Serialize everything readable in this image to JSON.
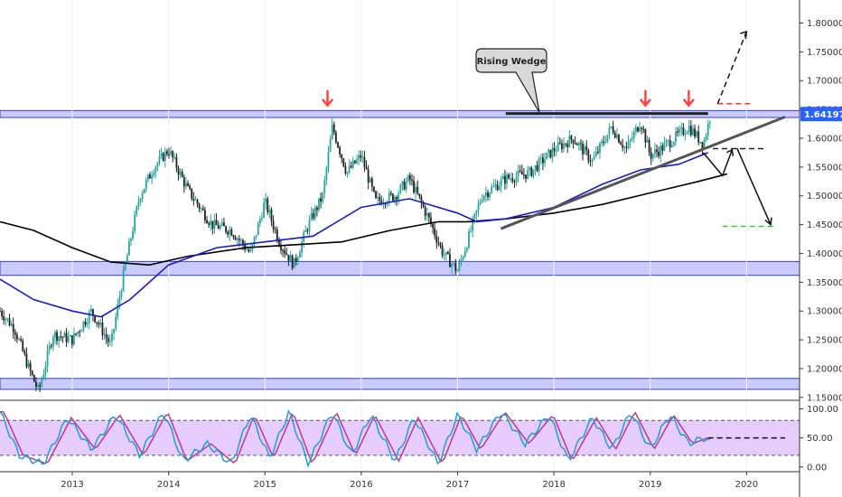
{
  "chart_data": [
    {
      "type": "candlestick",
      "annotation": "Rising Wedge",
      "last_price": "1.64197",
      "x_ticks": [
        "2013",
        "2014",
        "2015",
        "2016",
        "2017",
        "2018",
        "2019",
        "2020"
      ],
      "y_ticks": [
        "1.80000",
        "1.75000",
        "1.70000",
        "1.65000",
        "1.60000",
        "1.55000",
        "1.50000",
        "1.45000",
        "1.40000",
        "1.35000",
        "1.30000",
        "1.25000",
        "1.20000",
        "1.15000"
      ],
      "ylim": [
        1.145,
        1.84
      ],
      "xlim": [
        2012.25,
        2020.55
      ],
      "colors": {
        "up": "#26a69a",
        "down": "#222222",
        "zone": "#b3b3ff",
        "zone_border": "#3344cc",
        "ma_fast": "#1a1acc",
        "ma_slow": "#000000",
        "badge": "#2962ff",
        "target_up": "#ff3333",
        "target_down": "#33cc33",
        "arrow": "#ff4444",
        "oscillator_fill": "#e6ccff"
      },
      "zones": [
        [
          1.636,
          1.648
        ],
        [
          1.362,
          1.386
        ],
        [
          1.164,
          1.183
        ]
      ],
      "resistance_line": {
        "x": [
          2017.5,
          2019.6
        ],
        "y": [
          1.643,
          1.643
        ]
      },
      "support_trendline": {
        "x": [
          2017.45,
          2020.4
        ],
        "y": [
          1.443,
          1.637
        ]
      },
      "up_target": {
        "x": [
          2019.7,
          2020.05
        ],
        "y": [
          1.66,
          1.66
        ]
      },
      "down_target": {
        "x": [
          2019.75,
          2020.3
        ],
        "y": [
          1.447,
          1.447
        ]
      },
      "mid_line": {
        "x": [
          2019.65,
          2020.2
        ],
        "y": [
          1.582,
          1.582
        ]
      },
      "arrows_at": [
        [
          2015.65,
          1.66
        ],
        [
          2018.95,
          1.66
        ],
        [
          2019.4,
          1.66
        ]
      ],
      "projection_up": {
        "x": [
          2019.7,
          2020.0
        ],
        "y": [
          1.66,
          1.785
        ]
      },
      "projection_down": {
        "x": [
          2019.9,
          2020.25
        ],
        "y": [
          1.583,
          1.45
        ]
      },
      "projection_bounce": {
        "x": [
          2019.55,
          2019.75,
          2019.85
        ],
        "y": [
          1.575,
          1.535,
          1.58
        ]
      },
      "ma_fast": {
        "x": [
          2012.25,
          2012.6,
          2013.0,
          2013.3,
          2013.6,
          2014.0,
          2014.5,
          2015.0,
          2015.5,
          2016.0,
          2016.5,
          2017.0,
          2017.2,
          2017.5,
          2018.0,
          2018.5,
          2018.9,
          2019.3,
          2019.6
        ],
        "y": [
          1.355,
          1.32,
          1.3,
          1.29,
          1.32,
          1.38,
          1.41,
          1.42,
          1.43,
          1.48,
          1.495,
          1.47,
          1.455,
          1.46,
          1.48,
          1.52,
          1.545,
          1.555,
          1.575
        ]
      },
      "ma_slow": {
        "x": [
          2012.25,
          2012.6,
          2013.0,
          2013.4,
          2013.8,
          2014.2,
          2014.8,
          2015.3,
          2015.8,
          2016.3,
          2016.8,
          2017.1,
          2017.5,
          2018.0,
          2018.5,
          2019.0,
          2019.5,
          2019.8
        ],
        "y": [
          1.455,
          1.44,
          1.41,
          1.385,
          1.38,
          1.395,
          1.41,
          1.415,
          1.42,
          1.44,
          1.455,
          1.455,
          1.46,
          1.47,
          1.485,
          1.505,
          1.525,
          1.538
        ]
      },
      "price_path": {
        "x": [
          2012.25,
          2012.4,
          2012.55,
          2012.65,
          2012.8,
          2013.0,
          2013.2,
          2013.4,
          2013.55,
          2013.7,
          2013.85,
          2014.0,
          2014.2,
          2014.45,
          2014.65,
          2014.85,
          2015.0,
          2015.15,
          2015.3,
          2015.45,
          2015.6,
          2015.7,
          2015.85,
          2016.0,
          2016.15,
          2016.35,
          2016.5,
          2016.7,
          2016.85,
          2017.0,
          2017.1,
          2017.25,
          2017.5,
          2017.75,
          2018.0,
          2018.2,
          2018.4,
          2018.6,
          2018.75,
          2018.9,
          2019.0,
          2019.1,
          2019.25,
          2019.4,
          2019.55,
          2019.62
        ],
        "y": [
          1.3,
          1.27,
          1.2,
          1.16,
          1.26,
          1.25,
          1.3,
          1.24,
          1.38,
          1.5,
          1.55,
          1.58,
          1.51,
          1.45,
          1.44,
          1.4,
          1.49,
          1.42,
          1.38,
          1.45,
          1.5,
          1.62,
          1.54,
          1.57,
          1.49,
          1.5,
          1.53,
          1.46,
          1.4,
          1.37,
          1.42,
          1.5,
          1.53,
          1.54,
          1.58,
          1.6,
          1.56,
          1.62,
          1.58,
          1.63,
          1.57,
          1.58,
          1.6,
          1.62,
          1.59,
          1.635
        ]
      },
      "stochastic": {
        "y_ticks": [
          "100.00",
          "50.00",
          "0.00"
        ],
        "ylim": [
          -5,
          110
        ],
        "bands": [
          20,
          80
        ],
        "signal_level": 50,
        "k": {
          "x": [
            2012.25,
            2012.45,
            2012.7,
            2012.95,
            2013.2,
            2013.45,
            2013.7,
            2013.95,
            2014.15,
            2014.4,
            2014.65,
            2014.85,
            2015.05,
            2015.25,
            2015.45,
            2015.7,
            2015.9,
            2016.1,
            2016.35,
            2016.55,
            2016.8,
            2017.0,
            2017.2,
            2017.45,
            2017.7,
            2017.95,
            2018.15,
            2018.4,
            2018.6,
            2018.8,
            2019.0,
            2019.2,
            2019.4,
            2019.55,
            2019.62
          ],
          "y": [
            95,
            20,
            5,
            85,
            30,
            90,
            20,
            95,
            10,
            40,
            5,
            90,
            15,
            95,
            5,
            95,
            20,
            90,
            10,
            85,
            5,
            90,
            30,
            95,
            40,
            90,
            10,
            85,
            30,
            95,
            30,
            90,
            40,
            50,
            45
          ]
        }
      }
    }
  ]
}
